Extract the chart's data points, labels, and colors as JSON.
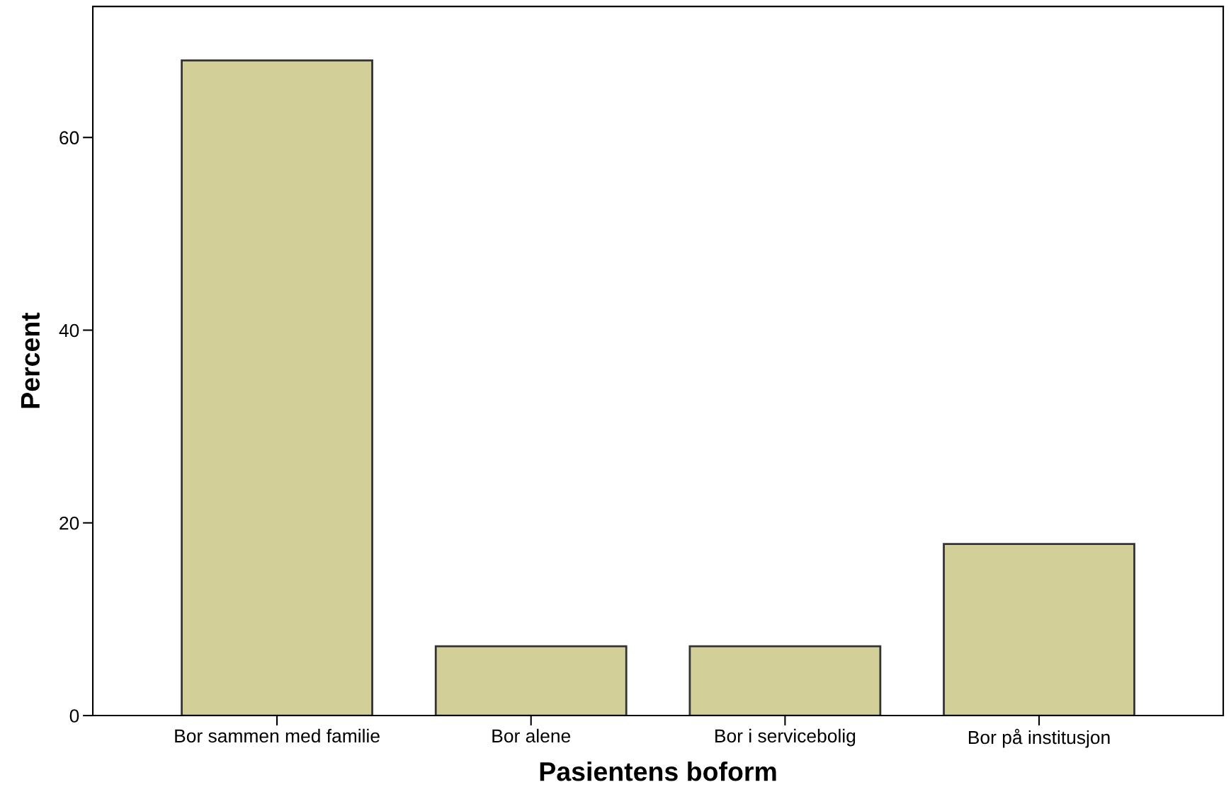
{
  "chart_data": {
    "type": "bar",
    "xlabel": "Pasientens boform",
    "ylabel": "Percent",
    "categories": [
      "Bor sammen med familie",
      "Bor alene",
      "Bor i servicebolig",
      "Bor på institusjon"
    ],
    "values": [
      68,
      7.2,
      7.2,
      17.8
    ],
    "color": "#d3cf98",
    "ylim": [
      0,
      73.6
    ],
    "yticks": [
      0,
      20,
      40,
      60
    ],
    "grid": false
  }
}
